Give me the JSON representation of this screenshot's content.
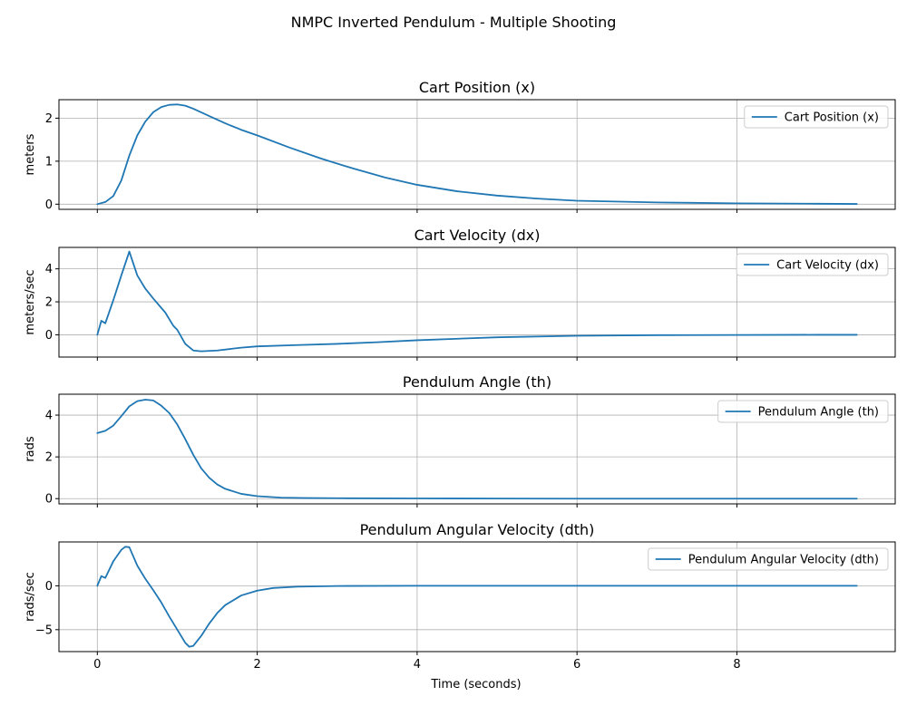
{
  "figure": {
    "suptitle": "NMPC Inverted Pendulum - Multiple Shooting",
    "xlabel": "Time (seconds)",
    "line_color": "#1f77b4",
    "grid_color": "#b0b0b0"
  },
  "chart_data": [
    {
      "type": "line",
      "title": "Cart Position (x)",
      "ylabel": "meters",
      "xlabel": "",
      "legend": "top-right",
      "grid": true,
      "xlim": [
        -0.48,
        9.98
      ],
      "ylim": [
        -0.12,
        2.43
      ],
      "xticks": [
        0,
        2,
        4,
        6,
        8
      ],
      "xtick_labels": [
        "",
        "",
        "",
        "",
        ""
      ],
      "yticks": [
        0,
        1,
        2
      ],
      "ytick_labels": [
        "0",
        "1",
        "2"
      ],
      "series": [
        {
          "name": "Cart Position (x)",
          "x": [
            0,
            0.1,
            0.2,
            0.3,
            0.4,
            0.5,
            0.6,
            0.7,
            0.8,
            0.9,
            1.0,
            1.1,
            1.2,
            1.4,
            1.6,
            1.8,
            2.0,
            2.4,
            2.8,
            3.2,
            3.6,
            4.0,
            4.5,
            5.0,
            5.5,
            6.0,
            7.0,
            8.0,
            9.0,
            9.5
          ],
          "y": [
            0,
            0.05,
            0.19,
            0.55,
            1.13,
            1.6,
            1.92,
            2.14,
            2.26,
            2.31,
            2.32,
            2.29,
            2.22,
            2.05,
            1.88,
            1.73,
            1.6,
            1.32,
            1.06,
            0.83,
            0.62,
            0.45,
            0.3,
            0.2,
            0.13,
            0.08,
            0.04,
            0.02,
            0.01,
            0.005
          ]
        }
      ]
    },
    {
      "type": "line",
      "title": "Cart Velocity (dx)",
      "ylabel": "meters/sec",
      "xlabel": "",
      "legend": "top-right",
      "grid": true,
      "xlim": [
        -0.48,
        9.98
      ],
      "ylim": [
        -1.35,
        5.3
      ],
      "xticks": [
        0,
        2,
        4,
        6,
        8
      ],
      "xtick_labels": [
        "",
        "",
        "",
        "",
        ""
      ],
      "yticks": [
        0,
        2,
        4
      ],
      "ytick_labels": [
        "0",
        "2",
        "4"
      ],
      "series": [
        {
          "name": "Cart Velocity (dx)",
          "x": [
            0,
            0.05,
            0.1,
            0.2,
            0.3,
            0.4,
            0.5,
            0.6,
            0.7,
            0.85,
            0.95,
            1.0,
            1.1,
            1.2,
            1.3,
            1.5,
            1.8,
            2.0,
            2.5,
            3.0,
            3.5,
            4.0,
            5.0,
            6.0,
            7.0,
            8.0,
            9.0,
            9.5
          ],
          "y": [
            0,
            0.85,
            0.7,
            2.1,
            3.6,
            5.05,
            3.6,
            2.8,
            2.2,
            1.35,
            0.55,
            0.3,
            -0.55,
            -0.95,
            -1.0,
            -0.95,
            -0.78,
            -0.7,
            -0.62,
            -0.55,
            -0.45,
            -0.33,
            -0.15,
            -0.06,
            -0.02,
            -0.01,
            0,
            0
          ]
        }
      ]
    },
    {
      "type": "line",
      "title": "Pendulum Angle (th)",
      "ylabel": "rads",
      "xlabel": "",
      "legend": "top-right",
      "grid": true,
      "xlim": [
        -0.48,
        9.98
      ],
      "ylim": [
        -0.25,
        5.0
      ],
      "xticks": [
        0,
        2,
        4,
        6,
        8
      ],
      "xtick_labels": [
        "",
        "",
        "",
        "",
        ""
      ],
      "yticks": [
        0,
        2,
        4
      ],
      "ytick_labels": [
        "0",
        "2",
        "4"
      ],
      "series": [
        {
          "name": "Pendulum Angle (th)",
          "x": [
            0,
            0.1,
            0.2,
            0.3,
            0.4,
            0.5,
            0.6,
            0.7,
            0.8,
            0.9,
            1.0,
            1.1,
            1.2,
            1.3,
            1.4,
            1.5,
            1.6,
            1.8,
            2.0,
            2.3,
            2.6,
            3.0,
            4.0,
            5.0,
            6.0,
            7.0,
            8.0,
            9.0,
            9.5
          ],
          "y": [
            3.14,
            3.25,
            3.5,
            3.95,
            4.42,
            4.67,
            4.74,
            4.7,
            4.45,
            4.1,
            3.55,
            2.85,
            2.1,
            1.45,
            1.0,
            0.68,
            0.47,
            0.23,
            0.12,
            0.05,
            0.03,
            0.02,
            0.01,
            0.005,
            0,
            0,
            0,
            0,
            0
          ]
        }
      ]
    },
    {
      "type": "line",
      "title": "Pendulum Angular Velocity (dth)",
      "ylabel": "rads/sec",
      "xlabel": "Time (seconds)",
      "legend": "top-right",
      "grid": true,
      "xlim": [
        -0.48,
        9.98
      ],
      "ylim": [
        -7.5,
        5.0
      ],
      "xticks": [
        0,
        2,
        4,
        6,
        8
      ],
      "xtick_labels": [
        "0",
        "2",
        "4",
        "6",
        "8"
      ],
      "yticks": [
        -5,
        0
      ],
      "ytick_labels": [
        "−5",
        "0"
      ],
      "series": [
        {
          "name": "Pendulum Angular Velocity (dth)",
          "x": [
            0,
            0.05,
            0.1,
            0.2,
            0.3,
            0.35,
            0.4,
            0.5,
            0.6,
            0.7,
            0.8,
            0.9,
            1.0,
            1.1,
            1.15,
            1.2,
            1.3,
            1.4,
            1.5,
            1.6,
            1.8,
            2.0,
            2.2,
            2.5,
            3.0,
            4.0,
            5.0,
            6.0,
            7.0,
            8.0,
            9.0,
            9.5
          ],
          "y": [
            0,
            1.1,
            0.9,
            2.8,
            4.1,
            4.45,
            4.4,
            2.3,
            0.8,
            -0.5,
            -1.9,
            -3.5,
            -5.0,
            -6.5,
            -6.95,
            -6.85,
            -5.7,
            -4.3,
            -3.1,
            -2.2,
            -1.1,
            -0.55,
            -0.25,
            -0.1,
            -0.02,
            0,
            0,
            0,
            0,
            0,
            0,
            0
          ]
        }
      ]
    }
  ]
}
